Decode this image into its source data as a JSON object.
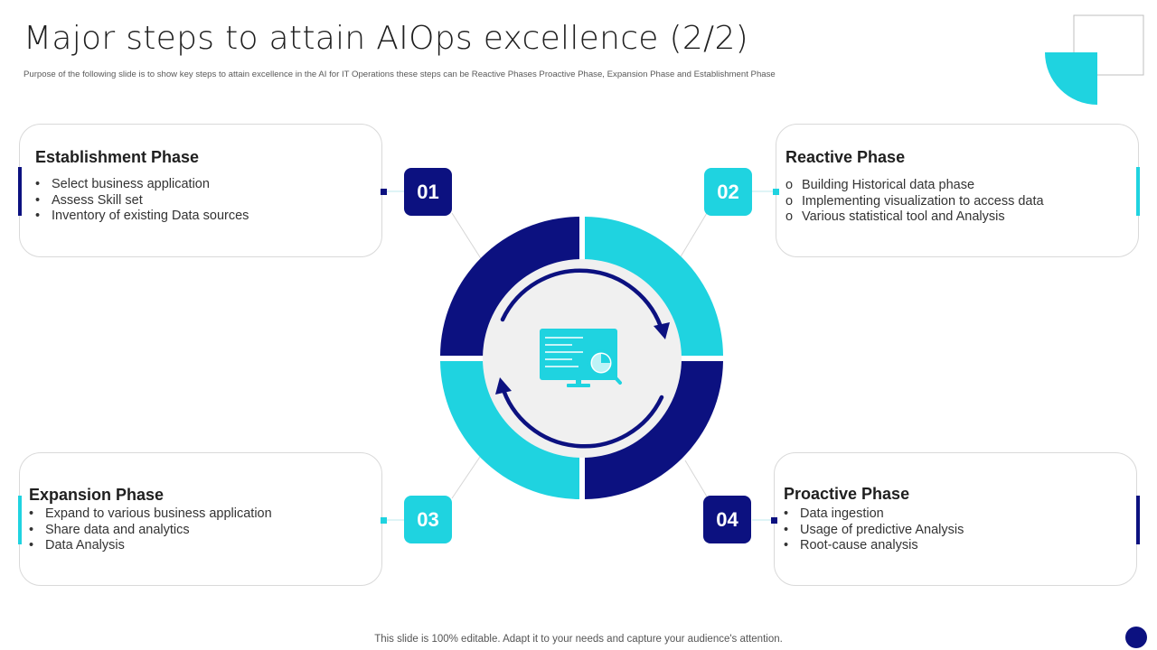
{
  "header": {
    "title": "Major steps to attain AIOps excellence (2/2)",
    "subtitle": "Purpose of the following slide is to show key steps to attain excellence in the AI for IT Operations these steps can be Reactive Phases Proactive Phase, Expansion Phase and Establishment  Phase"
  },
  "colors": {
    "navy": "#0c1180",
    "cyan": "#1fd3e0",
    "light_gray": "#f0f0f0"
  },
  "cards": {
    "establishment": {
      "number": "01",
      "title": "Establishment Phase",
      "bullet": "•",
      "items": [
        "Select business application",
        "Assess Skill set",
        "Inventory of existing Data sources"
      ]
    },
    "reactive": {
      "number": "02",
      "title": "Reactive Phase",
      "bullet": "o",
      "items": [
        "Building Historical data phase",
        "Implementing visualization to access data",
        "Various statistical tool and Analysis"
      ]
    },
    "expansion": {
      "number": "03",
      "title": "Expansion Phase",
      "bullet": "•",
      "items": [
        "Expand to various business application",
        "Share data and analytics",
        "Data Analysis"
      ]
    },
    "proactive": {
      "number": "04",
      "title": "Proactive Phase",
      "bullet": "•",
      "items": [
        "Data ingestion",
        "Usage of predictive Analysis",
        "Root-cause analysis"
      ]
    }
  },
  "center": {
    "icon": "monitor-analytics-icon",
    "cycle_icon": "refresh-cycle-icon"
  },
  "footer": {
    "text": "This slide is 100% editable. Adapt it to your needs and capture your audience's attention."
  }
}
